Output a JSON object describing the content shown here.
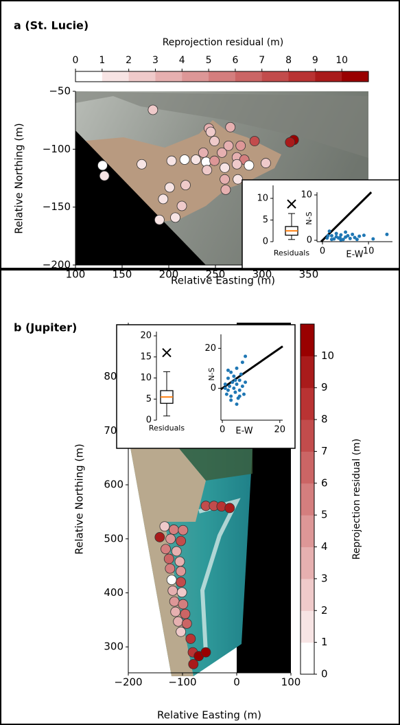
{
  "chart_data": [
    {
      "type": "scatter",
      "title": "a (St. Lucie)",
      "xlabel": "Relative Easting (m)",
      "ylabel": "Relative Northing (m)",
      "xlim": [
        100,
        414
      ],
      "ylim": [
        -200,
        -50
      ],
      "xticks": [
        100,
        150,
        200,
        250,
        300,
        350
      ],
      "yticks": [
        {
          "value": -200,
          "label": "−200"
        },
        {
          "value": -150,
          "label": "−150"
        },
        {
          "value": -100,
          "label": "−100"
        },
        {
          "value": -50,
          "label": "−50"
        }
      ],
      "x": [
        183,
        243,
        266,
        292,
        334,
        330,
        245,
        249,
        264,
        277,
        237,
        229,
        240,
        249,
        257,
        260,
        273,
        281,
        286,
        304,
        273,
        241,
        260,
        274,
        261,
        203,
        217,
        171,
        129,
        131,
        218,
        201,
        194,
        214,
        207,
        190
      ],
      "y": [
        -66,
        -82,
        -81,
        -93,
        -92,
        -94,
        -85,
        -93,
        -97,
        -97,
        -103,
        -109,
        -111,
        -110,
        -103,
        -116,
        -107,
        -109,
        -114,
        -112,
        -113,
        -118,
        -126,
        -126,
        -135,
        -110,
        -109,
        -113,
        -114,
        -123,
        -131,
        -133,
        -143,
        -149,
        -159,
        -161
      ],
      "color_values": [
        2,
        3,
        3,
        7,
        10,
        9,
        2,
        2,
        3,
        4,
        3,
        1,
        0,
        4,
        3,
        1,
        3,
        5,
        0,
        2,
        2,
        2,
        3,
        1,
        3,
        1,
        0,
        1,
        0,
        1,
        2,
        1,
        1,
        2,
        1,
        1
      ],
      "colorbar": {
        "label": "Reprojection residual (m)",
        "lim": [
          0,
          11
        ],
        "ticks": [
          0,
          1,
          2,
          3,
          4,
          5,
          6,
          7,
          8,
          9,
          10
        ],
        "colors": [
          "#ffffff",
          "#f7e4e4",
          "#efcaca",
          "#e6b0b0",
          "#dd9797",
          "#d47e7e",
          "#cb6565",
          "#c24c4c",
          "#b93333",
          "#a91b1b",
          "#990000"
        ]
      }
    },
    {
      "type": "box",
      "xlabel": "Residuals",
      "ylim": [
        0,
        13
      ],
      "yticks": [
        0,
        5,
        10
      ],
      "whislo": 0.5,
      "q1": 1.5,
      "median": 2.5,
      "q3": 3.5,
      "whishi": 6.5,
      "fliers": [
        8.7
      ],
      "median_color": "#ff7f0e"
    },
    {
      "type": "scatter",
      "xlabel": "E-W",
      "ylabel": "N-S",
      "xlim": [
        -1.2,
        15.2
      ],
      "ylim": [
        -0.3,
        10.6
      ],
      "xticks": [
        0,
        10
      ],
      "yticks": [
        0,
        10
      ],
      "identity_line": true,
      "color": "#1f77b4",
      "x": [
        1,
        1.5,
        2,
        2.5,
        3,
        3,
        3.5,
        4,
        4.5,
        5,
        5.5,
        6,
        6.5,
        7,
        8,
        9,
        11,
        14,
        2,
        4,
        1.2,
        5,
        7.5,
        3.8
      ],
      "y": [
        0.5,
        2,
        1,
        0.3,
        0.8,
        1.5,
        0.5,
        1.2,
        0.2,
        0.7,
        1,
        0.4,
        1.3,
        0.6,
        0.9,
        1.1,
        0.3,
        1.3,
        0.2,
        0.1,
        1,
        1.8,
        0.2,
        0.6
      ]
    },
    {
      "type": "scatter",
      "title": "b (Jupiter)",
      "xlabel": "Relative Easting (m)",
      "ylabel": "Relative Northing (m)",
      "xlim": [
        -200,
        100
      ],
      "ylim": [
        252,
        900
      ],
      "xticks": [
        {
          "value": -200,
          "label": "−200"
        },
        {
          "value": -100,
          "label": "−100"
        },
        0,
        100
      ],
      "yticks": [
        300,
        400,
        500,
        600,
        700,
        800
      ],
      "x": [
        -57,
        -42,
        -28,
        -13,
        -133,
        -116,
        -99,
        -142,
        -122,
        -103,
        -131,
        -111,
        -125,
        -105,
        -123,
        -103,
        -120,
        -103,
        -118,
        -101,
        -115,
        -99,
        -113,
        -95,
        -108,
        -92,
        -103,
        -85,
        -81,
        -70,
        -57,
        -80
      ],
      "y": [
        561,
        561,
        560,
        557,
        523,
        517,
        516,
        503,
        500,
        496,
        481,
        477,
        463,
        458,
        445,
        440,
        424,
        420,
        404,
        401,
        384,
        379,
        365,
        361,
        347,
        343,
        328,
        315,
        290,
        283,
        290,
        268
      ],
      "color_values": [
        7,
        7,
        8,
        9,
        2,
        5,
        5,
        9,
        4,
        7,
        5,
        3,
        6,
        3,
        5,
        4,
        0,
        7,
        3,
        2,
        4,
        5,
        3,
        6,
        3,
        6,
        2,
        8,
        8,
        10,
        10,
        9
      ],
      "colorbar": {
        "label": "Reprojection residual (m)",
        "lim": [
          0,
          11
        ],
        "ticks": [
          0,
          1,
          2,
          3,
          4,
          5,
          6,
          7,
          8,
          9,
          10
        ],
        "colors": [
          "#ffffff",
          "#f7e4e4",
          "#efcaca",
          "#e6b0b0",
          "#dd9797",
          "#d47e7e",
          "#cb6565",
          "#c24c4c",
          "#b93333",
          "#a91b1b",
          "#990000"
        ]
      }
    },
    {
      "type": "box",
      "xlabel": "Residuals",
      "ylim": [
        0,
        21
      ],
      "yticks": [
        0,
        5,
        10,
        15,
        20
      ],
      "whislo": 1,
      "q1": 4,
      "median": 5.5,
      "q3": 7,
      "whishi": 11.5,
      "fliers": [
        16
      ],
      "median_color": "#ff7f0e"
    },
    {
      "type": "scatter",
      "xlabel": "E-W",
      "ylabel": "N-S",
      "xlim": [
        -0.5,
        21
      ],
      "ylim": [
        -16,
        27
      ],
      "xticks": [
        0,
        20
      ],
      "yticks": [
        0,
        20
      ],
      "identity_line": true,
      "color": "#1f77b4",
      "x": [
        1,
        1.5,
        2,
        2,
        2.5,
        3,
        3,
        3.5,
        4,
        4,
        4.5,
        5,
        5,
        5.5,
        6,
        6,
        6.5,
        7,
        7,
        7.5,
        8,
        8,
        2,
        4.5,
        3,
        1,
        5,
        6
      ],
      "y": [
        2,
        -3,
        5,
        -1,
        1,
        8,
        -4,
        3,
        0,
        6,
        -2,
        2,
        10,
        -5,
        4,
        -1,
        7,
        1,
        13,
        -3,
        3,
        16,
        9,
        4,
        -6,
        0,
        -8,
        -4
      ]
    }
  ]
}
